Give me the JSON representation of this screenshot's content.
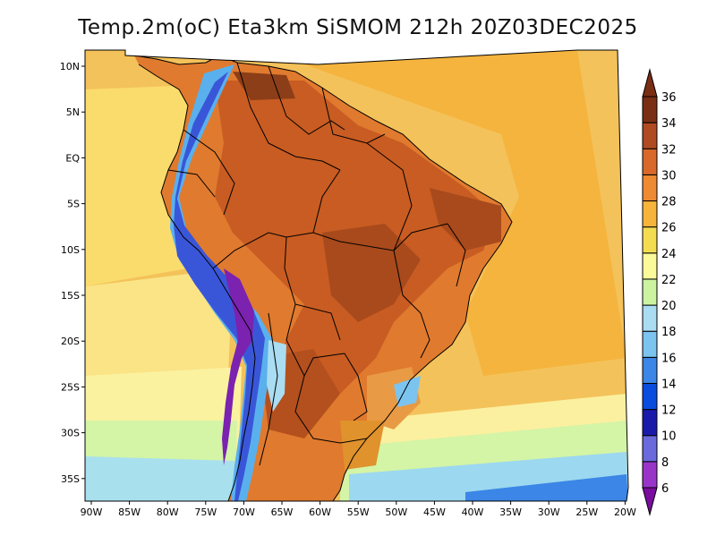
{
  "title": "Temp.2m(oC) Eta3km SiSMOM 212h 20Z03DEC2025",
  "axes": {
    "lat_labels": [
      "10N",
      "5N",
      "EQ",
      "5S",
      "10S",
      "15S",
      "20S",
      "25S",
      "30S",
      "35S"
    ],
    "lon_labels": [
      "90W",
      "85W",
      "80W",
      "75W",
      "70W",
      "65W",
      "60W",
      "55W",
      "50W",
      "45W",
      "40W",
      "35W",
      "30W",
      "25W",
      "20W"
    ]
  },
  "colorbar": {
    "levels": [
      "6",
      "8",
      "10",
      "12",
      "14",
      "16",
      "18",
      "20",
      "22",
      "24",
      "26",
      "28",
      "30",
      "32",
      "34",
      "36"
    ],
    "colors": [
      "#7b0ca0",
      "#9a34c8",
      "#6a6adc",
      "#1a1aaa",
      "#0a4ce0",
      "#3b86e6",
      "#7cc4f0",
      "#aadcf2",
      "#ccf4a0",
      "#fafa9a",
      "#f4dc50",
      "#f6b43a",
      "#ee8a32",
      "#d8692a",
      "#b04a20",
      "#7a2e14"
    ],
    "units": "oC"
  },
  "map": {
    "region": "South America / Brazil",
    "ocean_color": "#f6c85a",
    "land_color": "#e08030"
  }
}
